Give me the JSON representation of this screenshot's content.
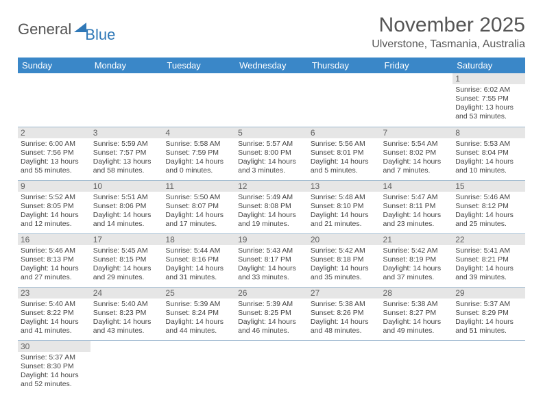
{
  "logo": {
    "part1": "General",
    "part2": "Blue"
  },
  "title": "November 2025",
  "location": "Ulverstone, Tasmania, Australia",
  "colors": {
    "header_bg": "#3a87c8",
    "header_text": "#ffffff",
    "daynum_bg": "#e6e6e6",
    "daynum_text": "#606060",
    "week_border": "#9db8cf",
    "body_text": "#444",
    "title_text": "#555",
    "background": "#ffffff"
  },
  "weekdays": [
    "Sunday",
    "Monday",
    "Tuesday",
    "Wednesday",
    "Thursday",
    "Friday",
    "Saturday"
  ],
  "weeks": [
    [
      null,
      null,
      null,
      null,
      null,
      null,
      {
        "n": "1",
        "sr": "Sunrise: 6:02 AM",
        "ss": "Sunset: 7:55 PM",
        "d1": "Daylight: 13 hours",
        "d2": "and 53 minutes."
      }
    ],
    [
      {
        "n": "2",
        "sr": "Sunrise: 6:00 AM",
        "ss": "Sunset: 7:56 PM",
        "d1": "Daylight: 13 hours",
        "d2": "and 55 minutes."
      },
      {
        "n": "3",
        "sr": "Sunrise: 5:59 AM",
        "ss": "Sunset: 7:57 PM",
        "d1": "Daylight: 13 hours",
        "d2": "and 58 minutes."
      },
      {
        "n": "4",
        "sr": "Sunrise: 5:58 AM",
        "ss": "Sunset: 7:59 PM",
        "d1": "Daylight: 14 hours",
        "d2": "and 0 minutes."
      },
      {
        "n": "5",
        "sr": "Sunrise: 5:57 AM",
        "ss": "Sunset: 8:00 PM",
        "d1": "Daylight: 14 hours",
        "d2": "and 3 minutes."
      },
      {
        "n": "6",
        "sr": "Sunrise: 5:56 AM",
        "ss": "Sunset: 8:01 PM",
        "d1": "Daylight: 14 hours",
        "d2": "and 5 minutes."
      },
      {
        "n": "7",
        "sr": "Sunrise: 5:54 AM",
        "ss": "Sunset: 8:02 PM",
        "d1": "Daylight: 14 hours",
        "d2": "and 7 minutes."
      },
      {
        "n": "8",
        "sr": "Sunrise: 5:53 AM",
        "ss": "Sunset: 8:04 PM",
        "d1": "Daylight: 14 hours",
        "d2": "and 10 minutes."
      }
    ],
    [
      {
        "n": "9",
        "sr": "Sunrise: 5:52 AM",
        "ss": "Sunset: 8:05 PM",
        "d1": "Daylight: 14 hours",
        "d2": "and 12 minutes."
      },
      {
        "n": "10",
        "sr": "Sunrise: 5:51 AM",
        "ss": "Sunset: 8:06 PM",
        "d1": "Daylight: 14 hours",
        "d2": "and 14 minutes."
      },
      {
        "n": "11",
        "sr": "Sunrise: 5:50 AM",
        "ss": "Sunset: 8:07 PM",
        "d1": "Daylight: 14 hours",
        "d2": "and 17 minutes."
      },
      {
        "n": "12",
        "sr": "Sunrise: 5:49 AM",
        "ss": "Sunset: 8:08 PM",
        "d1": "Daylight: 14 hours",
        "d2": "and 19 minutes."
      },
      {
        "n": "13",
        "sr": "Sunrise: 5:48 AM",
        "ss": "Sunset: 8:10 PM",
        "d1": "Daylight: 14 hours",
        "d2": "and 21 minutes."
      },
      {
        "n": "14",
        "sr": "Sunrise: 5:47 AM",
        "ss": "Sunset: 8:11 PM",
        "d1": "Daylight: 14 hours",
        "d2": "and 23 minutes."
      },
      {
        "n": "15",
        "sr": "Sunrise: 5:46 AM",
        "ss": "Sunset: 8:12 PM",
        "d1": "Daylight: 14 hours",
        "d2": "and 25 minutes."
      }
    ],
    [
      {
        "n": "16",
        "sr": "Sunrise: 5:46 AM",
        "ss": "Sunset: 8:13 PM",
        "d1": "Daylight: 14 hours",
        "d2": "and 27 minutes."
      },
      {
        "n": "17",
        "sr": "Sunrise: 5:45 AM",
        "ss": "Sunset: 8:15 PM",
        "d1": "Daylight: 14 hours",
        "d2": "and 29 minutes."
      },
      {
        "n": "18",
        "sr": "Sunrise: 5:44 AM",
        "ss": "Sunset: 8:16 PM",
        "d1": "Daylight: 14 hours",
        "d2": "and 31 minutes."
      },
      {
        "n": "19",
        "sr": "Sunrise: 5:43 AM",
        "ss": "Sunset: 8:17 PM",
        "d1": "Daylight: 14 hours",
        "d2": "and 33 minutes."
      },
      {
        "n": "20",
        "sr": "Sunrise: 5:42 AM",
        "ss": "Sunset: 8:18 PM",
        "d1": "Daylight: 14 hours",
        "d2": "and 35 minutes."
      },
      {
        "n": "21",
        "sr": "Sunrise: 5:42 AM",
        "ss": "Sunset: 8:19 PM",
        "d1": "Daylight: 14 hours",
        "d2": "and 37 minutes."
      },
      {
        "n": "22",
        "sr": "Sunrise: 5:41 AM",
        "ss": "Sunset: 8:21 PM",
        "d1": "Daylight: 14 hours",
        "d2": "and 39 minutes."
      }
    ],
    [
      {
        "n": "23",
        "sr": "Sunrise: 5:40 AM",
        "ss": "Sunset: 8:22 PM",
        "d1": "Daylight: 14 hours",
        "d2": "and 41 minutes."
      },
      {
        "n": "24",
        "sr": "Sunrise: 5:40 AM",
        "ss": "Sunset: 8:23 PM",
        "d1": "Daylight: 14 hours",
        "d2": "and 43 minutes."
      },
      {
        "n": "25",
        "sr": "Sunrise: 5:39 AM",
        "ss": "Sunset: 8:24 PM",
        "d1": "Daylight: 14 hours",
        "d2": "and 44 minutes."
      },
      {
        "n": "26",
        "sr": "Sunrise: 5:39 AM",
        "ss": "Sunset: 8:25 PM",
        "d1": "Daylight: 14 hours",
        "d2": "and 46 minutes."
      },
      {
        "n": "27",
        "sr": "Sunrise: 5:38 AM",
        "ss": "Sunset: 8:26 PM",
        "d1": "Daylight: 14 hours",
        "d2": "and 48 minutes."
      },
      {
        "n": "28",
        "sr": "Sunrise: 5:38 AM",
        "ss": "Sunset: 8:27 PM",
        "d1": "Daylight: 14 hours",
        "d2": "and 49 minutes."
      },
      {
        "n": "29",
        "sr": "Sunrise: 5:37 AM",
        "ss": "Sunset: 8:29 PM",
        "d1": "Daylight: 14 hours",
        "d2": "and 51 minutes."
      }
    ],
    [
      {
        "n": "30",
        "sr": "Sunrise: 5:37 AM",
        "ss": "Sunset: 8:30 PM",
        "d1": "Daylight: 14 hours",
        "d2": "and 52 minutes."
      },
      null,
      null,
      null,
      null,
      null,
      null
    ]
  ]
}
